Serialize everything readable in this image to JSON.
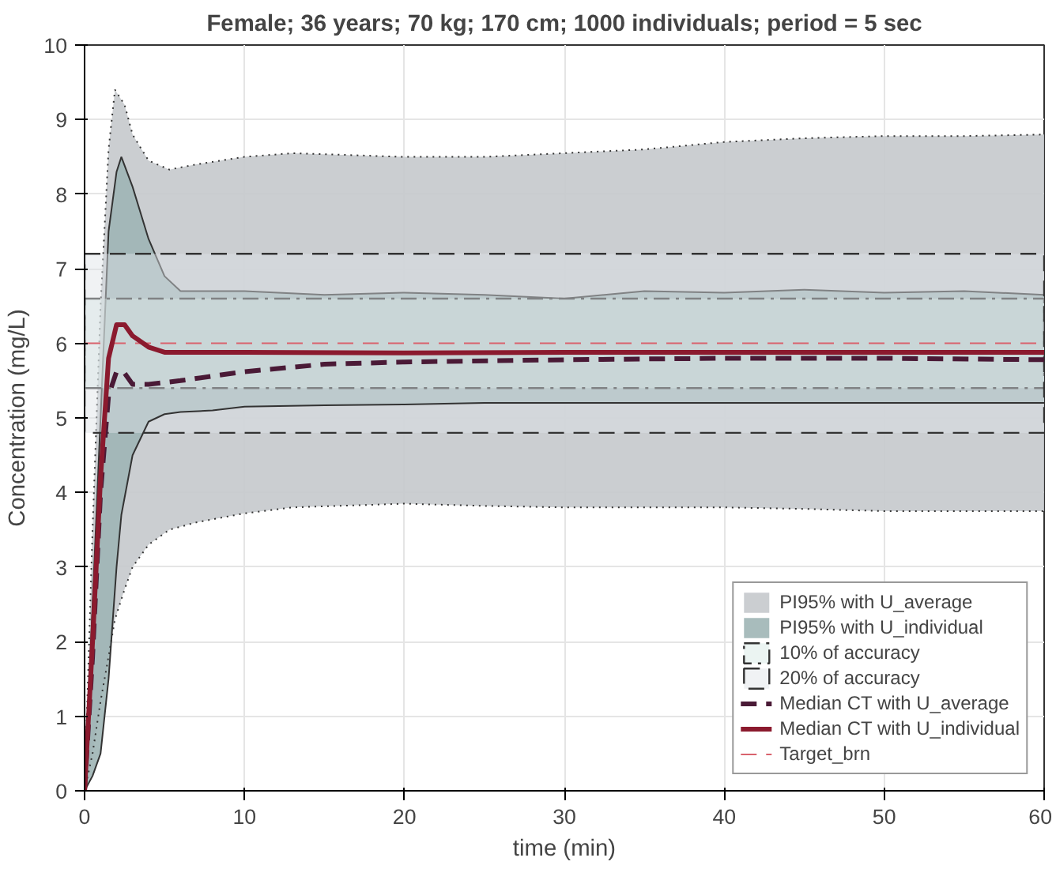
{
  "chart_data": {
    "type": "line",
    "title": "Female; 36 years; 70 kg; 170 cm; 1000 individuals; period = 5 sec",
    "xlabel": "time (min)",
    "ylabel": "Concentration (mg/L)",
    "xlim": [
      0,
      60
    ],
    "xticks": [
      0,
      10,
      20,
      30,
      40,
      50,
      60
    ],
    "ylim": [
      0,
      10
    ],
    "yticks": [
      0,
      1,
      2,
      3,
      4,
      5,
      6,
      7,
      8,
      9,
      10
    ],
    "grid": true,
    "legend": "bottom right",
    "series": [
      {
        "name": "PI95% with U_average",
        "type": "area",
        "color": "#c5c9cc",
        "line_style": "dotted",
        "x": [
          0,
          0.5,
          1,
          1.5,
          1.9,
          2.5,
          3,
          4,
          5.3,
          7,
          10,
          13,
          20,
          25,
          30,
          35,
          40,
          45,
          50,
          55,
          60
        ],
        "values": [
          0,
          3.5,
          6.5,
          8.6,
          9.4,
          9.2,
          8.8,
          8.45,
          8.33,
          8.4,
          8.5,
          8.55,
          8.5,
          8.5,
          8.55,
          8.6,
          8.7,
          8.75,
          8.78,
          8.78,
          8.8
        ]
      },
      {
        "name": "PI95% with U_individual",
        "type": "area",
        "color": "#9fb5b5",
        "line_style": "solid",
        "x": [
          0,
          0.5,
          1,
          1.5,
          2,
          2.3,
          3,
          4,
          5,
          6,
          8,
          10,
          15,
          20,
          25,
          30,
          35,
          40,
          45,
          50,
          55,
          60
        ],
        "values": [
          0,
          2.5,
          5,
          7.5,
          8.3,
          8.5,
          8.1,
          7.4,
          6.9,
          6.7,
          6.7,
          6.7,
          6.65,
          6.68,
          6.65,
          6.6,
          6.7,
          6.68,
          6.72,
          6.68,
          6.7,
          6.65
        ]
      },
      {
        "type": "line",
        "color": "#333333",
        "line_style": "dotted",
        "x": [
          0,
          0.5,
          1,
          1.5,
          1.9,
          2.5,
          3,
          4,
          5.3,
          7,
          10,
          13,
          20,
          25,
          30,
          35,
          40,
          45,
          50,
          55,
          60
        ],
        "values": [
          0,
          0.5,
          1.2,
          1.8,
          2.3,
          2.7,
          3.0,
          3.3,
          3.5,
          3.6,
          3.72,
          3.8,
          3.85,
          3.82,
          3.8,
          3.8,
          3.8,
          3.78,
          3.75,
          3.75,
          3.75
        ]
      },
      {
        "type": "line",
        "color": "#333333",
        "line_style": "solid",
        "x": [
          0,
          0.5,
          1,
          1.5,
          2,
          2.3,
          3,
          4,
          5,
          6,
          8,
          10,
          15,
          20,
          25,
          30,
          35,
          40,
          45,
          50,
          55,
          60
        ],
        "values": [
          0,
          0.2,
          0.5,
          1.5,
          3.0,
          3.7,
          4.5,
          4.95,
          5.05,
          5.08,
          5.1,
          5.15,
          5.17,
          5.18,
          5.2,
          5.2,
          5.2,
          5.2,
          5.2,
          5.2,
          5.2,
          5.2
        ]
      },
      {
        "name": "Median CT with U_average",
        "color": "#4a1a36",
        "line_style": "dashed",
        "x": [
          0,
          0.5,
          1,
          1.5,
          2,
          2.5,
          3,
          4,
          6,
          10,
          15,
          20,
          30,
          40,
          50,
          60
        ],
        "values": [
          0,
          1.8,
          4.0,
          5.3,
          5.62,
          5.6,
          5.45,
          5.45,
          5.5,
          5.62,
          5.72,
          5.75,
          5.78,
          5.8,
          5.8,
          5.78
        ]
      },
      {
        "name": "Median CT with U_individual",
        "type": "line",
        "color": "#8b1a2e",
        "line_style": "solid",
        "x": [
          0,
          0.5,
          1,
          1.5,
          2,
          2.5,
          3,
          4,
          5,
          10,
          20,
          30,
          40,
          50,
          60
        ],
        "values": [
          0,
          2.0,
          4.2,
          5.8,
          6.25,
          6.25,
          6.1,
          5.95,
          5.88,
          5.88,
          5.87,
          5.88,
          5.88,
          5.88,
          5.88
        ]
      }
    ],
    "bands": [
      {
        "axis": "y",
        "from": 5.4,
        "to": 6.6,
        "label": "10% of accuracy",
        "color": "#d3e6e2"
      },
      {
        "axis": "y",
        "from": 4.8,
        "to": 7.2,
        "label": "20% of accuracy",
        "color": "#dde3e6"
      }
    ],
    "ref_lines": [
      {
        "axis": "y",
        "value": 6,
        "label": "Target_brn",
        "color": "#d9626d",
        "line_style": "dashed"
      }
    ]
  }
}
